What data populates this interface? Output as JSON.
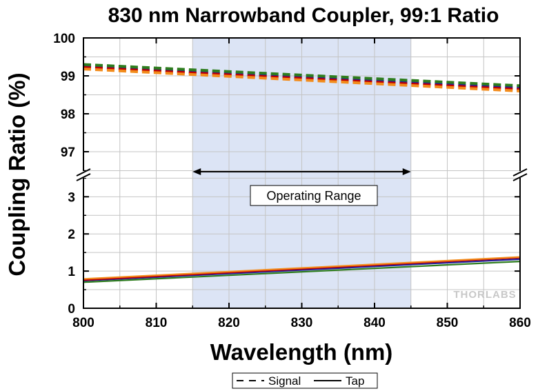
{
  "chart_data": {
    "type": "line",
    "title": "830 nm Narrowband Coupler, 99:1 Ratio",
    "xlabel": "Wavelength (nm)",
    "ylabel": "Coupling Ratio (%)",
    "xlim": [
      800,
      860
    ],
    "x_ticks": [
      800,
      810,
      820,
      830,
      840,
      850,
      860
    ],
    "y_axis_break": true,
    "upper_ylim": [
      96.4,
      100
    ],
    "upper_y_ticks": [
      97,
      98,
      99,
      100
    ],
    "lower_ylim": [
      0,
      3.6
    ],
    "lower_y_ticks": [
      0,
      1,
      2,
      3
    ],
    "grid": true,
    "shaded_band": {
      "x_range": [
        815,
        845
      ],
      "label": "Operating Range",
      "color": "#dce4f5"
    },
    "legend": {
      "placement": "bottom-center",
      "entries": [
        {
          "label": "Signal",
          "style": "dashed"
        },
        {
          "label": "Tap",
          "style": "solid"
        }
      ]
    },
    "watermark": "THORLABS",
    "x": [
      800,
      860
    ],
    "series": [
      {
        "kind": "Signal",
        "color": "#1f1f9e",
        "style": "dashed",
        "y": [
          99.25,
          98.68
        ]
      },
      {
        "kind": "Signal",
        "color": "#c00000",
        "style": "dashed",
        "y": [
          99.22,
          98.64
        ]
      },
      {
        "kind": "Signal",
        "color": "#f28c1c",
        "style": "dashed",
        "y": [
          99.18,
          98.6
        ]
      },
      {
        "kind": "Signal",
        "color": "#2e7d1e",
        "style": "dashed",
        "y": [
          99.3,
          98.74
        ]
      },
      {
        "kind": "Tap",
        "color": "#1f1f9e",
        "style": "solid",
        "y": [
          0.74,
          1.32
        ]
      },
      {
        "kind": "Tap",
        "color": "#c00000",
        "style": "solid",
        "y": [
          0.76,
          1.36
        ]
      },
      {
        "kind": "Tap",
        "color": "#f28c1c",
        "style": "solid",
        "y": [
          0.79,
          1.38
        ]
      },
      {
        "kind": "Tap",
        "color": "#2e7d1e",
        "style": "solid",
        "y": [
          0.7,
          1.26
        ]
      }
    ]
  }
}
